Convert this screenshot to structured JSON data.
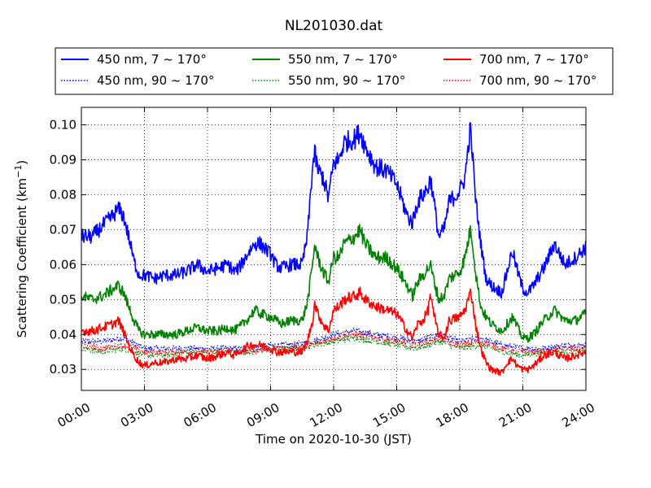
{
  "chart_data": {
    "type": "line",
    "title": "NL201030.dat",
    "xlabel": "Time on 2020-10-30 (JST)",
    "ylabel": "Scattering Coefficient (km",
    "ylabel_exponent": "−1",
    "ylabel_close": ")",
    "x_unit": "hour",
    "xlim": [
      0,
      24
    ],
    "ylim": [
      0.024,
      0.105
    ],
    "grid": true,
    "grid_style": "dotted",
    "legend_placement": "top, outside, 3 columns",
    "x_ticks": [
      0,
      3,
      6,
      9,
      12,
      15,
      18,
      21,
      24
    ],
    "x_tick_labels": [
      "00:00",
      "03:00",
      "06:00",
      "09:00",
      "12:00",
      "15:00",
      "18:00",
      "21:00",
      "24:00"
    ],
    "y_ticks": [
      0.03,
      0.04,
      0.05,
      0.06,
      0.07,
      0.08,
      0.09,
      0.1
    ],
    "y_tick_labels": [
      "0.03",
      "0.04",
      "0.05",
      "0.06",
      "0.07",
      "0.08",
      "0.09",
      "0.10"
    ],
    "series": [
      {
        "name": "450 nm, 7 ~ 170°",
        "color": "#0000ff",
        "style": "solid",
        "x": [
          0,
          0.5,
          1,
          1.5,
          1.75,
          2,
          2.25,
          2.5,
          2.75,
          3,
          3.5,
          4,
          4.5,
          5,
          5.5,
          6,
          6.5,
          7,
          7.25,
          7.5,
          8,
          8.25,
          8.5,
          9,
          9.25,
          9.5,
          10,
          10.5,
          10.75,
          11,
          11.1,
          11.25,
          11.5,
          11.75,
          12,
          12.25,
          12.5,
          13,
          13.25,
          13.5,
          14,
          14.5,
          15,
          15.5,
          15.75,
          16,
          16.25,
          16.5,
          16.6,
          16.75,
          17,
          17.25,
          17.5,
          18,
          18.25,
          18.5,
          18.6,
          18.75,
          19,
          19.25,
          19.5,
          20,
          20.25,
          20.5,
          20.75,
          21,
          21.25,
          21.5,
          22,
          22.5,
          23,
          23.5,
          24
        ],
        "y": [
          0.068,
          0.068,
          0.071,
          0.074,
          0.076,
          0.074,
          0.068,
          0.061,
          0.057,
          0.057,
          0.056,
          0.057,
          0.057,
          0.058,
          0.06,
          0.058,
          0.059,
          0.06,
          0.058,
          0.059,
          0.064,
          0.066,
          0.066,
          0.063,
          0.06,
          0.059,
          0.06,
          0.06,
          0.068,
          0.088,
          0.092,
          0.087,
          0.085,
          0.079,
          0.089,
          0.09,
          0.095,
          0.096,
          0.098,
          0.094,
          0.088,
          0.087,
          0.083,
          0.074,
          0.072,
          0.078,
          0.08,
          0.082,
          0.085,
          0.079,
          0.068,
          0.07,
          0.078,
          0.081,
          0.085,
          0.099,
          0.092,
          0.079,
          0.066,
          0.056,
          0.054,
          0.052,
          0.058,
          0.064,
          0.058,
          0.053,
          0.052,
          0.054,
          0.059,
          0.066,
          0.06,
          0.062,
          0.065
        ]
      },
      {
        "name": "450 nm, 90 ~ 170°",
        "color": "#0000ff",
        "style": "dotted",
        "x": [
          0,
          1,
          2,
          3,
          4,
          5,
          6,
          7,
          8,
          9,
          10,
          11,
          12,
          13,
          14,
          15,
          16,
          17,
          18,
          19,
          20,
          21,
          22,
          23,
          24
        ],
        "y": [
          0.038,
          0.038,
          0.039,
          0.036,
          0.036,
          0.036,
          0.036,
          0.036,
          0.036,
          0.037,
          0.037,
          0.038,
          0.04,
          0.041,
          0.04,
          0.039,
          0.038,
          0.04,
          0.038,
          0.039,
          0.037,
          0.036,
          0.036,
          0.037,
          0.037
        ]
      },
      {
        "name": "550 nm, 7 ~ 170°",
        "color": "#008000",
        "style": "solid",
        "x": [
          0,
          0.5,
          1,
          1.5,
          1.75,
          2,
          2.25,
          2.5,
          2.75,
          3,
          3.5,
          4,
          4.5,
          5,
          5.5,
          6,
          6.5,
          7,
          7.25,
          7.5,
          8,
          8.25,
          8.5,
          9,
          9.25,
          9.5,
          10,
          10.5,
          10.75,
          11,
          11.1,
          11.25,
          11.5,
          11.75,
          12,
          12.25,
          12.5,
          13,
          13.25,
          13.5,
          14,
          14.5,
          15,
          15.5,
          15.75,
          16,
          16.25,
          16.5,
          16.6,
          16.75,
          17,
          17.25,
          17.5,
          18,
          18.25,
          18.5,
          18.6,
          18.75,
          19,
          19.25,
          19.5,
          20,
          20.25,
          20.5,
          20.75,
          21,
          21.25,
          21.5,
          22,
          22.5,
          23,
          23.5,
          24
        ],
        "y": [
          0.051,
          0.05,
          0.051,
          0.053,
          0.054,
          0.052,
          0.048,
          0.044,
          0.041,
          0.04,
          0.04,
          0.04,
          0.04,
          0.041,
          0.042,
          0.041,
          0.041,
          0.042,
          0.041,
          0.042,
          0.045,
          0.047,
          0.046,
          0.045,
          0.044,
          0.043,
          0.044,
          0.044,
          0.049,
          0.06,
          0.066,
          0.062,
          0.058,
          0.055,
          0.062,
          0.062,
          0.066,
          0.068,
          0.07,
          0.066,
          0.062,
          0.062,
          0.059,
          0.054,
          0.051,
          0.055,
          0.057,
          0.059,
          0.06,
          0.056,
          0.05,
          0.051,
          0.056,
          0.058,
          0.062,
          0.07,
          0.067,
          0.058,
          0.048,
          0.045,
          0.043,
          0.041,
          0.043,
          0.045,
          0.042,
          0.039,
          0.039,
          0.04,
          0.044,
          0.047,
          0.044,
          0.044,
          0.046
        ]
      },
      {
        "name": "550 nm, 90 ~ 170°",
        "color": "#008000",
        "style": "dotted",
        "x": [
          0,
          1,
          2,
          3,
          4,
          5,
          6,
          7,
          8,
          9,
          10,
          11,
          12,
          13,
          14,
          15,
          16,
          17,
          18,
          19,
          20,
          21,
          22,
          23,
          24
        ],
        "y": [
          0.036,
          0.035,
          0.036,
          0.034,
          0.034,
          0.035,
          0.035,
          0.035,
          0.035,
          0.036,
          0.036,
          0.037,
          0.038,
          0.039,
          0.038,
          0.037,
          0.036,
          0.038,
          0.036,
          0.037,
          0.035,
          0.034,
          0.035,
          0.035,
          0.035
        ]
      },
      {
        "name": "700 nm, 7 ~ 170°",
        "color": "#ff0000",
        "style": "solid",
        "x": [
          0,
          0.5,
          1,
          1.5,
          1.75,
          2,
          2.25,
          2.5,
          2.75,
          3,
          3.5,
          4,
          4.5,
          5,
          5.5,
          6,
          6.5,
          7,
          7.25,
          7.5,
          8,
          8.25,
          8.5,
          9,
          9.25,
          9.5,
          10,
          10.5,
          10.75,
          11,
          11.1,
          11.25,
          11.5,
          11.75,
          12,
          12.25,
          12.5,
          13,
          13.25,
          13.5,
          14,
          14.5,
          15,
          15.5,
          15.75,
          16,
          16.25,
          16.5,
          16.6,
          16.75,
          17,
          17.25,
          17.5,
          18,
          18.25,
          18.5,
          18.6,
          18.75,
          19,
          19.25,
          19.5,
          20,
          20.25,
          20.5,
          20.75,
          21,
          21.25,
          21.5,
          22,
          22.5,
          23,
          23.5,
          24
        ],
        "y": [
          0.041,
          0.041,
          0.042,
          0.043,
          0.044,
          0.041,
          0.037,
          0.034,
          0.032,
          0.031,
          0.032,
          0.032,
          0.033,
          0.033,
          0.034,
          0.033,
          0.034,
          0.035,
          0.034,
          0.035,
          0.037,
          0.037,
          0.037,
          0.036,
          0.035,
          0.035,
          0.035,
          0.035,
          0.038,
          0.044,
          0.049,
          0.046,
          0.043,
          0.041,
          0.047,
          0.048,
          0.05,
          0.051,
          0.052,
          0.05,
          0.048,
          0.047,
          0.046,
          0.041,
          0.039,
          0.043,
          0.044,
          0.047,
          0.052,
          0.046,
          0.04,
          0.039,
          0.044,
          0.045,
          0.047,
          0.052,
          0.05,
          0.043,
          0.036,
          0.032,
          0.03,
          0.029,
          0.032,
          0.033,
          0.031,
          0.03,
          0.03,
          0.031,
          0.034,
          0.035,
          0.033,
          0.034,
          0.035
        ]
      },
      {
        "name": "700 nm, 90 ~ 170°",
        "color": "#ff0000",
        "style": "dotted",
        "x": [
          0,
          1,
          2,
          3,
          4,
          5,
          6,
          7,
          8,
          9,
          10,
          11,
          12,
          13,
          14,
          15,
          16,
          17,
          18,
          19,
          20,
          21,
          22,
          23,
          24
        ],
        "y": [
          0.037,
          0.036,
          0.037,
          0.035,
          0.035,
          0.035,
          0.035,
          0.035,
          0.035,
          0.036,
          0.036,
          0.037,
          0.039,
          0.04,
          0.039,
          0.038,
          0.037,
          0.039,
          0.037,
          0.038,
          0.036,
          0.035,
          0.035,
          0.036,
          0.036
        ]
      }
    ]
  }
}
